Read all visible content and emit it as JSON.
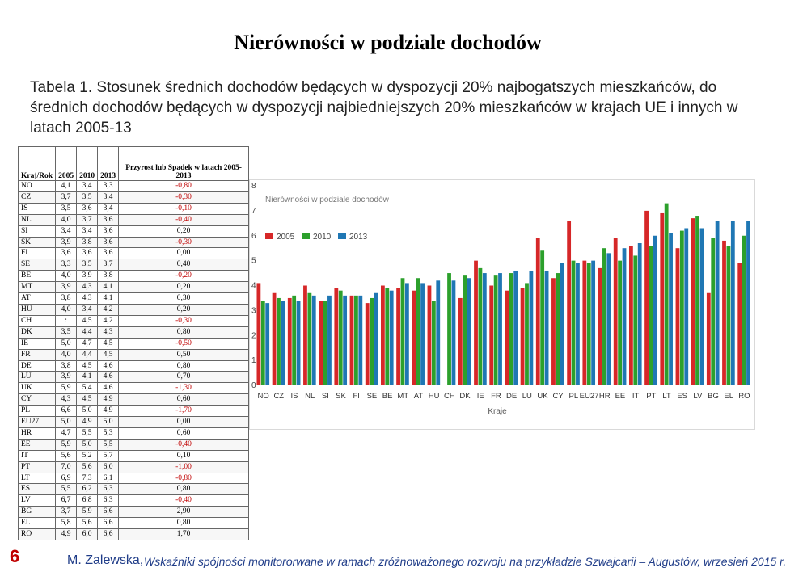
{
  "title": "Nierówności w podziale dochodów",
  "caption": "Tabela 1. Stosunek średnich  dochodów będących w dyspozycji 20% najbogatszych mieszkańców, do średnich dochodów będących w dyspozycji najbiedniejszych 20% mieszkańców w krajach UE i innych w latach 2005-13",
  "table": {
    "headers": [
      "Kraj/Rok",
      "2005",
      "2010",
      "2013",
      "Przyrost lub Spadek w latach 2005-2013"
    ],
    "rows": [
      [
        "NO",
        "4,1",
        "3,4",
        "3,3",
        "-0,80"
      ],
      [
        "CZ",
        "3,7",
        "3,5",
        "3,4",
        "-0,30"
      ],
      [
        "IS",
        "3,5",
        "3,6",
        "3,4",
        "-0,10"
      ],
      [
        "NL",
        "4,0",
        "3,7",
        "3,6",
        "-0,40"
      ],
      [
        "SI",
        "3,4",
        "3,4",
        "3,6",
        "0,20"
      ],
      [
        "SK",
        "3,9",
        "3,8",
        "3,6",
        "-0,30"
      ],
      [
        "FI",
        "3,6",
        "3,6",
        "3,6",
        "0,00"
      ],
      [
        "SE",
        "3,3",
        "3,5",
        "3,7",
        "0,40"
      ],
      [
        "BE",
        "4,0",
        "3,9",
        "3,8",
        "-0,20"
      ],
      [
        "MT",
        "3,9",
        "4,3",
        "4,1",
        "0,20"
      ],
      [
        "AT",
        "3,8",
        "4,3",
        "4,1",
        "0,30"
      ],
      [
        "HU",
        "4,0",
        "3,4",
        "4,2",
        "0,20"
      ],
      [
        "CH",
        ":",
        "4,5",
        "4,2",
        "-0,30"
      ],
      [
        "DK",
        "3,5",
        "4,4",
        "4,3",
        "0,80"
      ],
      [
        "IE",
        "5,0",
        "4,7",
        "4,5",
        "-0,50"
      ],
      [
        "FR",
        "4,0",
        "4,4",
        "4,5",
        "0,50"
      ],
      [
        "DE",
        "3,8",
        "4,5",
        "4,6",
        "0,80"
      ],
      [
        "LU",
        "3,9",
        "4,1",
        "4,6",
        "0,70"
      ],
      [
        "UK",
        "5,9",
        "5,4",
        "4,6",
        "-1,30"
      ],
      [
        "CY",
        "4,3",
        "4,5",
        "4,9",
        "0,60"
      ],
      [
        "PL",
        "6,6",
        "5,0",
        "4,9",
        "-1,70"
      ],
      [
        "EU27",
        "5,0",
        "4,9",
        "5,0",
        "0,00"
      ],
      [
        "HR",
        "4,7",
        "5,5",
        "5,3",
        "0,60"
      ],
      [
        "EE",
        "5,9",
        "5,0",
        "5,5",
        "-0,40"
      ],
      [
        "IT",
        "5,6",
        "5,2",
        "5,7",
        "0,10"
      ],
      [
        "PT",
        "7,0",
        "5,6",
        "6,0",
        "-1,00"
      ],
      [
        "LT",
        "6,9",
        "7,3",
        "6,1",
        "-0,80"
      ],
      [
        "ES",
        "5,5",
        "6,2",
        "6,3",
        "0,80"
      ],
      [
        "LV",
        "6,7",
        "6,8",
        "6,3",
        "-0,40"
      ],
      [
        "BG",
        "3,7",
        "5,9",
        "6,6",
        "2,90"
      ],
      [
        "EL",
        "5,8",
        "5,6",
        "6,6",
        "0,80"
      ],
      [
        "RO",
        "4,9",
        "6,0",
        "6,6",
        "1,70"
      ]
    ]
  },
  "chart_data": {
    "type": "bar",
    "title": "Nierówności w podziale dochodów",
    "xlabel": "Kraje",
    "ylabel": "",
    "ylim": [
      0,
      8
    ],
    "yticks": [
      0,
      1,
      2,
      3,
      4,
      5,
      6,
      7,
      8
    ],
    "grid": false,
    "legend": "top-left",
    "categories": [
      "NO",
      "CZ",
      "IS",
      "NL",
      "SI",
      "SK",
      "FI",
      "SE",
      "BE",
      "MT",
      "AT",
      "HU",
      "CH",
      "DK",
      "IE",
      "FR",
      "DE",
      "LU",
      "UK",
      "CY",
      "PL",
      "EU27",
      "HR",
      "EE",
      "IT",
      "PT",
      "LT",
      "ES",
      "LV",
      "BG",
      "EL",
      "RO"
    ],
    "series": [
      {
        "name": "2005",
        "color": "#d62728",
        "values": [
          4.1,
          3.7,
          3.5,
          4.0,
          3.4,
          3.9,
          3.6,
          3.3,
          4.0,
          3.9,
          3.8,
          4.0,
          null,
          3.5,
          5.0,
          4.0,
          3.8,
          3.9,
          5.9,
          4.3,
          6.6,
          5.0,
          4.7,
          5.9,
          5.6,
          7.0,
          6.9,
          5.5,
          6.7,
          3.7,
          5.8,
          4.9
        ]
      },
      {
        "name": "2010",
        "color": "#2ca02c",
        "values": [
          3.4,
          3.5,
          3.6,
          3.7,
          3.4,
          3.8,
          3.6,
          3.5,
          3.9,
          4.3,
          4.3,
          3.4,
          4.5,
          4.4,
          4.7,
          4.4,
          4.5,
          4.1,
          5.4,
          4.5,
          5.0,
          4.9,
          5.5,
          5.0,
          5.2,
          5.6,
          7.3,
          6.2,
          6.8,
          5.9,
          5.6,
          6.0
        ]
      },
      {
        "name": "2013",
        "color": "#1f77b4",
        "values": [
          3.3,
          3.4,
          3.4,
          3.6,
          3.6,
          3.6,
          3.6,
          3.7,
          3.8,
          4.1,
          4.1,
          4.2,
          4.2,
          4.3,
          4.5,
          4.5,
          4.6,
          4.6,
          4.6,
          4.9,
          4.9,
          5.0,
          5.3,
          5.5,
          5.7,
          6.0,
          6.1,
          6.3,
          6.3,
          6.6,
          6.6,
          6.6
        ]
      }
    ]
  },
  "footer": {
    "page_number": "6",
    "author": "M. Zalewska,",
    "text": "Wskaźniki spójności monitororwane w ramach zróżnoważonego rozwoju na przykładzie Szwajcarii – Augustów, wrzesień 2015 r."
  }
}
